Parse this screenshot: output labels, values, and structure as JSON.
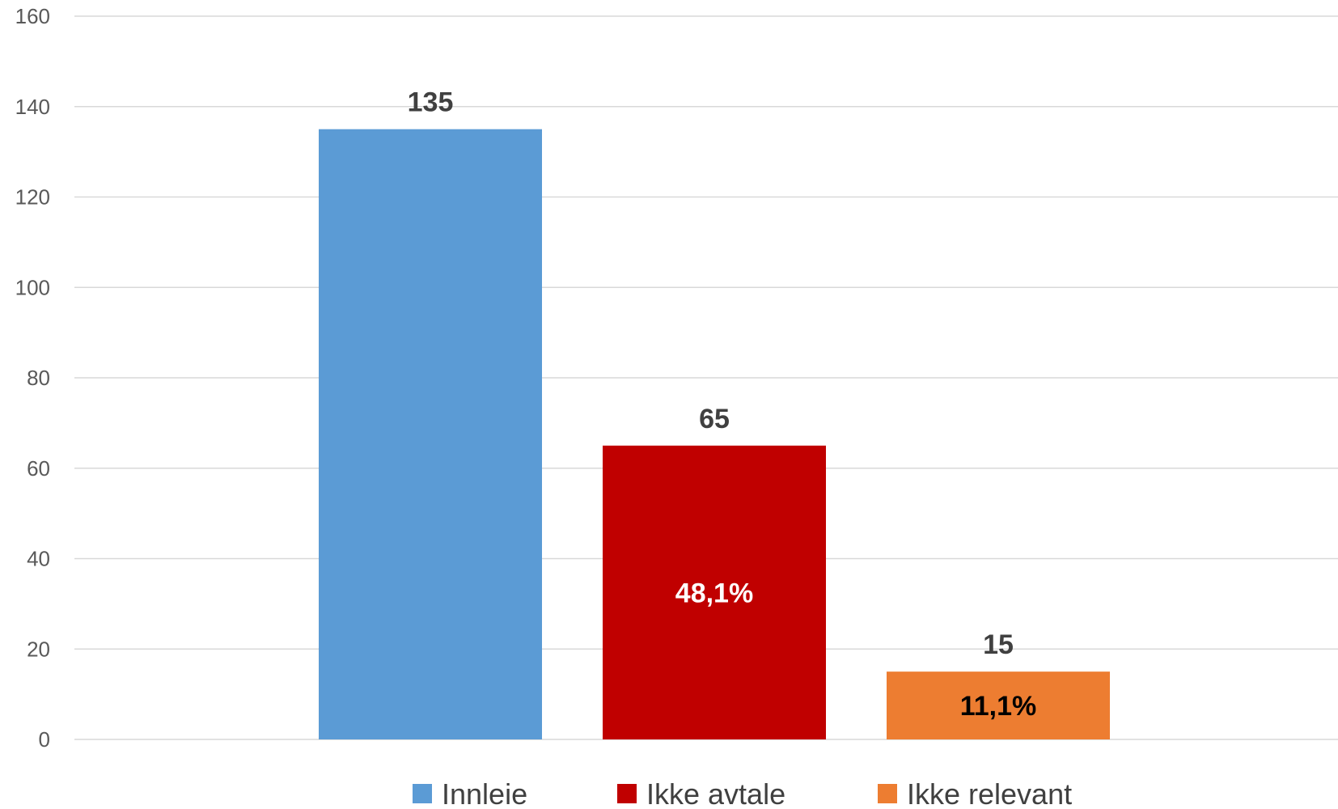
{
  "chart_data": {
    "type": "bar",
    "title": "",
    "xlabel": "",
    "ylabel": "",
    "ylim": [
      0,
      160
    ],
    "yticks": [
      0,
      20,
      40,
      60,
      80,
      100,
      120,
      140,
      160
    ],
    "grid": true,
    "legend_position": "bottom",
    "series": [
      {
        "name": "Innleie",
        "value": 135,
        "value_label": "135",
        "inner_label": "",
        "color": "#5B9BD5",
        "inner_label_color": "#ffffff"
      },
      {
        "name": "Ikke avtale",
        "value": 65,
        "value_label": "65",
        "inner_label": "48,1%",
        "color": "#C00000",
        "inner_label_color": "#ffffff"
      },
      {
        "name": "Ikke relevant",
        "value": 15,
        "value_label": "15",
        "inner_label": "11,1%",
        "color": "#ED7D31",
        "inner_label_color": "#000000"
      }
    ]
  }
}
